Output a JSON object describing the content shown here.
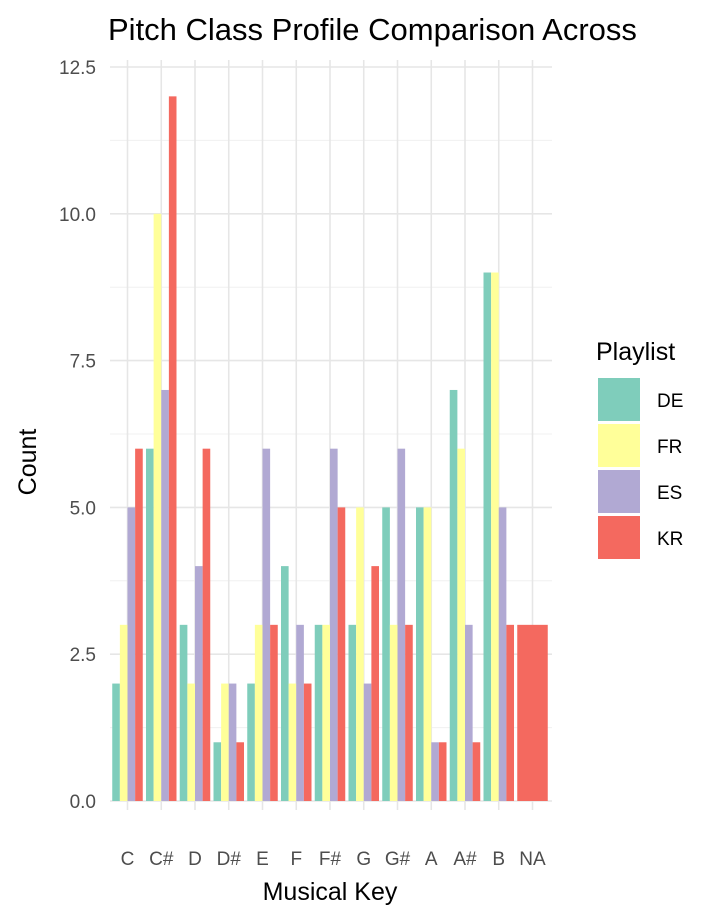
{
  "chart_data": {
    "type": "bar",
    "title": "Pitch Class Profile Comparison Across",
    "xlabel": "Musical Key",
    "ylabel": "Count",
    "ylim": [
      0,
      12.5
    ],
    "y_ticks": [
      "0.0",
      "2.5",
      "5.0",
      "7.5",
      "10.0",
      "12.5"
    ],
    "grid": true,
    "legend_position": "right",
    "legend_title": "Playlist",
    "categories": [
      "C",
      "C#",
      "D",
      "D#",
      "E",
      "F",
      "F#",
      "G",
      "G#",
      "A",
      "A#",
      "B",
      "NA"
    ],
    "series": [
      {
        "name": "DE",
        "color": "#7fcdbb",
        "values": [
          2,
          6,
          3,
          1,
          2,
          4,
          3,
          3,
          5,
          5,
          7,
          9,
          null
        ]
      },
      {
        "name": "FR",
        "color": "#ffff99",
        "values": [
          3,
          10,
          2,
          2,
          3,
          2,
          3,
          5,
          3,
          5,
          6,
          9,
          null
        ]
      },
      {
        "name": "ES",
        "color": "#b1a9d3",
        "values": [
          5,
          7,
          4,
          2,
          6,
          3,
          6,
          2,
          6,
          1,
          3,
          5,
          null
        ]
      },
      {
        "name": "KR",
        "color": "#f4695f",
        "values": [
          6,
          12,
          6,
          1,
          3,
          2,
          5,
          4,
          3,
          1,
          1,
          3,
          3
        ]
      }
    ]
  }
}
